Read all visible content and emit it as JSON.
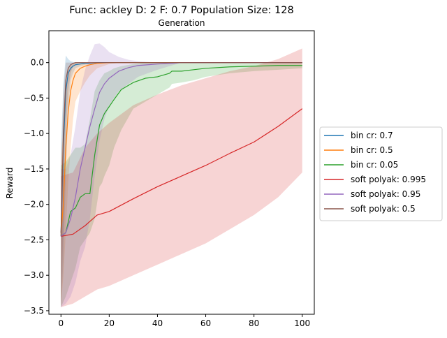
{
  "chart_data": {
    "type": "line",
    "title": "Func: ackley D: 2 F: 0.7 Population Size: 128",
    "subtitle": "Generation",
    "ylabel": "Reward",
    "xlabel": "",
    "xlim": [
      -5,
      105
    ],
    "ylim": [
      -3.55,
      0.45
    ],
    "xticks": [
      0,
      20,
      40,
      60,
      80,
      100
    ],
    "yticks": [
      0.0,
      -0.5,
      -1.0,
      -1.5,
      -2.0,
      -2.5,
      -3.0,
      -3.5
    ],
    "grid": false,
    "legend_position": "right",
    "series": [
      {
        "name": "bin cr: 0.7",
        "color": "#1f77b4",
        "x": [
          0,
          1,
          2,
          3,
          4,
          5,
          6,
          8,
          10,
          15,
          20,
          100
        ],
        "y": [
          -2.4,
          -1.2,
          -0.4,
          -0.15,
          -0.08,
          -0.05,
          -0.03,
          -0.02,
          -0.01,
          0.0,
          0.0,
          0.0
        ],
        "upper": [
          -1.2,
          -0.3,
          0.1,
          0.05,
          0.02,
          0.01,
          0.0,
          0.0,
          0.0,
          0.0,
          0.0,
          0.0
        ],
        "lower": [
          -3.45,
          -2.8,
          -1.6,
          -0.7,
          -0.25,
          -0.15,
          -0.08,
          -0.05,
          -0.03,
          -0.01,
          0.0,
          0.0
        ]
      },
      {
        "name": "bin cr: 0.5",
        "color": "#ff7f0e",
        "x": [
          0,
          1,
          2,
          3,
          4,
          5,
          6,
          8,
          10,
          12,
          15,
          20,
          25,
          100
        ],
        "y": [
          -2.4,
          -2.0,
          -1.2,
          -0.7,
          -0.4,
          -0.25,
          -0.15,
          -0.08,
          -0.05,
          -0.03,
          -0.01,
          0.0,
          0.0,
          0.0
        ],
        "upper": [
          -1.4,
          -0.9,
          -0.35,
          -0.1,
          -0.05,
          -0.02,
          0.0,
          0.0,
          0.0,
          0.0,
          0.0,
          0.0,
          0.0,
          0.0
        ],
        "lower": [
          -3.45,
          -3.0,
          -2.4,
          -1.7,
          -1.2,
          -0.8,
          -0.55,
          -0.4,
          -0.28,
          -0.18,
          -0.08,
          -0.02,
          0.0,
          0.0
        ]
      },
      {
        "name": "bin cr: 0.05",
        "color": "#2ca02c",
        "x": [
          0,
          2,
          4,
          6,
          8,
          10,
          12,
          14,
          16,
          17,
          18,
          20,
          22,
          25,
          30,
          35,
          40,
          45,
          46,
          50,
          55,
          60,
          70,
          80,
          90,
          100
        ],
        "y": [
          -2.45,
          -2.4,
          -2.1,
          -2.05,
          -1.9,
          -1.85,
          -1.85,
          -1.3,
          -0.88,
          -0.8,
          -0.72,
          -0.62,
          -0.52,
          -0.38,
          -0.28,
          -0.22,
          -0.2,
          -0.15,
          -0.12,
          -0.12,
          -0.1,
          -0.08,
          -0.06,
          -0.05,
          -0.04,
          -0.04
        ],
        "upper": [
          -1.45,
          -1.4,
          -1.3,
          -1.2,
          -1.2,
          -1.15,
          -0.8,
          -0.4,
          -0.25,
          -0.2,
          -0.15,
          -0.12,
          -0.08,
          -0.05,
          -0.02,
          0.0,
          0.0,
          0.0,
          0.0,
          0.0,
          0.0,
          0.0,
          0.0,
          0.0,
          0.0,
          0.0
        ],
        "lower": [
          -3.45,
          -3.3,
          -3.1,
          -2.9,
          -2.6,
          -2.5,
          -2.4,
          -2.2,
          -1.75,
          -1.7,
          -1.6,
          -1.45,
          -1.2,
          -0.95,
          -0.65,
          -0.55,
          -0.45,
          -0.35,
          -0.3,
          -0.28,
          -0.25,
          -0.2,
          -0.15,
          -0.12,
          -0.1,
          -0.08
        ]
      },
      {
        "name": "soft polyak: 0.995",
        "color": "#d62728",
        "x": [
          0,
          5,
          10,
          15,
          20,
          30,
          40,
          50,
          60,
          70,
          80,
          90,
          100
        ],
        "y": [
          -2.45,
          -2.42,
          -2.3,
          -2.15,
          -2.1,
          -1.92,
          -1.75,
          -1.6,
          -1.45,
          -1.28,
          -1.12,
          -0.9,
          -0.65
        ],
        "upper": [
          -1.6,
          -1.55,
          -1.2,
          -1.0,
          -0.85,
          -0.6,
          -0.45,
          -0.32,
          -0.22,
          -0.12,
          -0.05,
          0.05,
          0.2
        ],
        "lower": [
          -3.45,
          -3.4,
          -3.3,
          -3.2,
          -3.15,
          -3.0,
          -2.85,
          -2.7,
          -2.55,
          -2.35,
          -2.15,
          -1.9,
          -1.55
        ]
      },
      {
        "name": "soft polyak: 0.95",
        "color": "#9467bd",
        "x": [
          0,
          2,
          4,
          6,
          8,
          10,
          12,
          14,
          16,
          18,
          20,
          24,
          28,
          32,
          36,
          40,
          45,
          50,
          100
        ],
        "y": [
          -2.45,
          -2.4,
          -2.2,
          -1.9,
          -1.5,
          -1.2,
          -0.9,
          -0.65,
          -0.42,
          -0.3,
          -0.22,
          -0.12,
          -0.07,
          -0.04,
          -0.03,
          -0.02,
          -0.01,
          0.0,
          0.0
        ],
        "upper": [
          -1.5,
          -1.5,
          -1.3,
          -0.9,
          -0.4,
          -0.1,
          0.1,
          0.26,
          0.27,
          0.22,
          0.15,
          0.08,
          0.04,
          0.02,
          0.01,
          0.0,
          0.0,
          0.0,
          0.0
        ],
        "lower": [
          -3.45,
          -3.4,
          -3.3,
          -3.1,
          -2.8,
          -2.6,
          -2.2,
          -1.6,
          -1.1,
          -0.8,
          -0.6,
          -0.4,
          -0.3,
          -0.2,
          -0.15,
          -0.1,
          -0.05,
          0.0,
          0.0
        ]
      },
      {
        "name": "soft polyak: 0.5",
        "color": "#8c564b",
        "x": [
          0,
          1,
          2,
          3,
          4,
          5,
          6,
          8,
          10,
          100
        ],
        "y": [
          -2.45,
          -1.0,
          -0.25,
          -0.08,
          -0.03,
          -0.01,
          0.0,
          0.0,
          0.0,
          0.0
        ],
        "upper": [
          -1.5,
          -0.4,
          0.0,
          0.0,
          0.0,
          0.0,
          0.0,
          0.0,
          0.0,
          0.0
        ],
        "lower": [
          -3.45,
          -2.3,
          -1.0,
          -0.4,
          -0.15,
          -0.05,
          -0.02,
          0.0,
          0.0,
          0.0
        ]
      }
    ]
  }
}
